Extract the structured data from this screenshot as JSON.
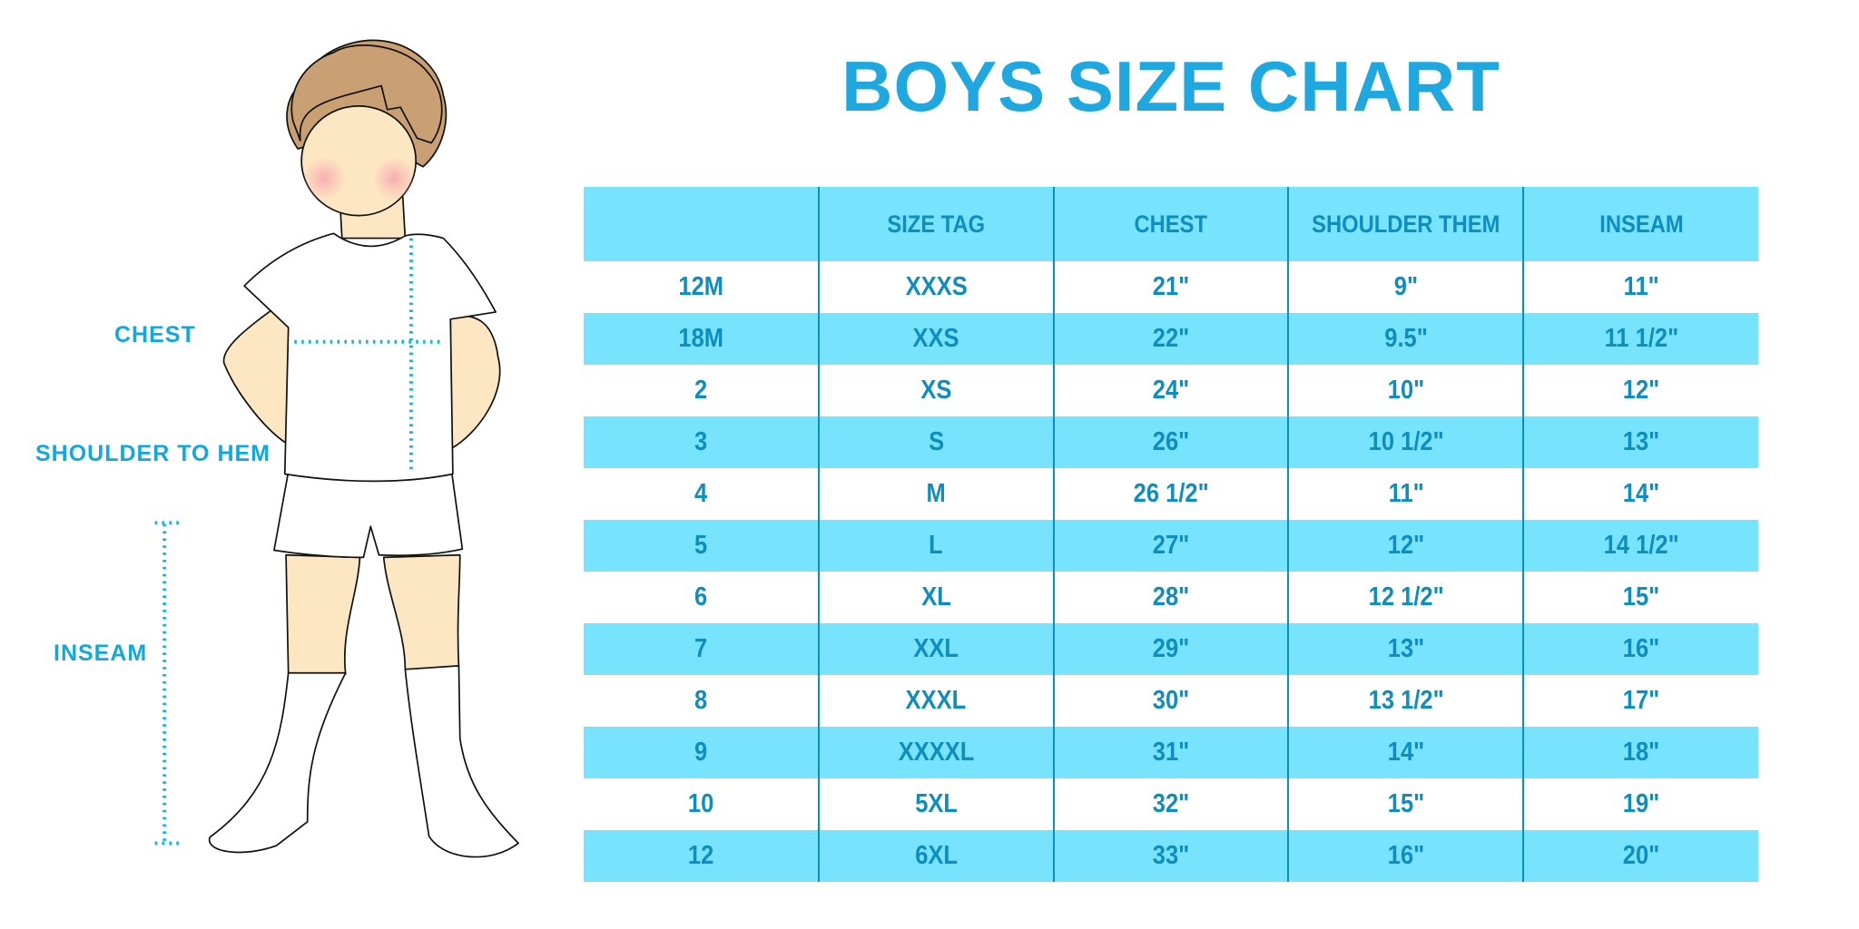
{
  "title": "BOYS SIZE CHART",
  "measure_labels": {
    "chest": "CHEST",
    "shoulder_to_hem": "SHOULDER TO HEM",
    "inseam": "INSEAM"
  },
  "colors": {
    "title": "#1EA8DF",
    "table_text": "#0E8DBE",
    "row_highlight": "#78E3FD",
    "divider": "#0B8EC0",
    "measure_line": "#11B5E4"
  },
  "table": {
    "headers": [
      "",
      "SIZE TAG",
      "CHEST",
      "SHOULDER THEM",
      "INSEAM"
    ],
    "rows": [
      [
        "12M",
        "XXXS",
        "21\"",
        "9\"",
        "11\""
      ],
      [
        "18M",
        "XXS",
        "22\"",
        "9.5\"",
        "11 1/2\""
      ],
      [
        "2",
        "XS",
        "24\"",
        "10\"",
        "12\""
      ],
      [
        "3",
        "S",
        "26\"",
        "10 1/2\"",
        "13\""
      ],
      [
        "4",
        "M",
        "26 1/2\"",
        "11\"",
        "14\""
      ],
      [
        "5",
        "L",
        "27\"",
        "12\"",
        "14 1/2\""
      ],
      [
        "6",
        "XL",
        "28\"",
        "12 1/2\"",
        "15\""
      ],
      [
        "7",
        "XXL",
        "29\"",
        "13\"",
        "16\""
      ],
      [
        "8",
        "XXXL",
        "30\"",
        "13 1/2\"",
        "17\""
      ],
      [
        "9",
        "XXXXL",
        "31\"",
        "14\"",
        "18\""
      ],
      [
        "10",
        "5XL",
        "32\"",
        "15\"",
        "19\""
      ],
      [
        "12",
        "6XL",
        "33\"",
        "16\"",
        "20\""
      ]
    ]
  }
}
